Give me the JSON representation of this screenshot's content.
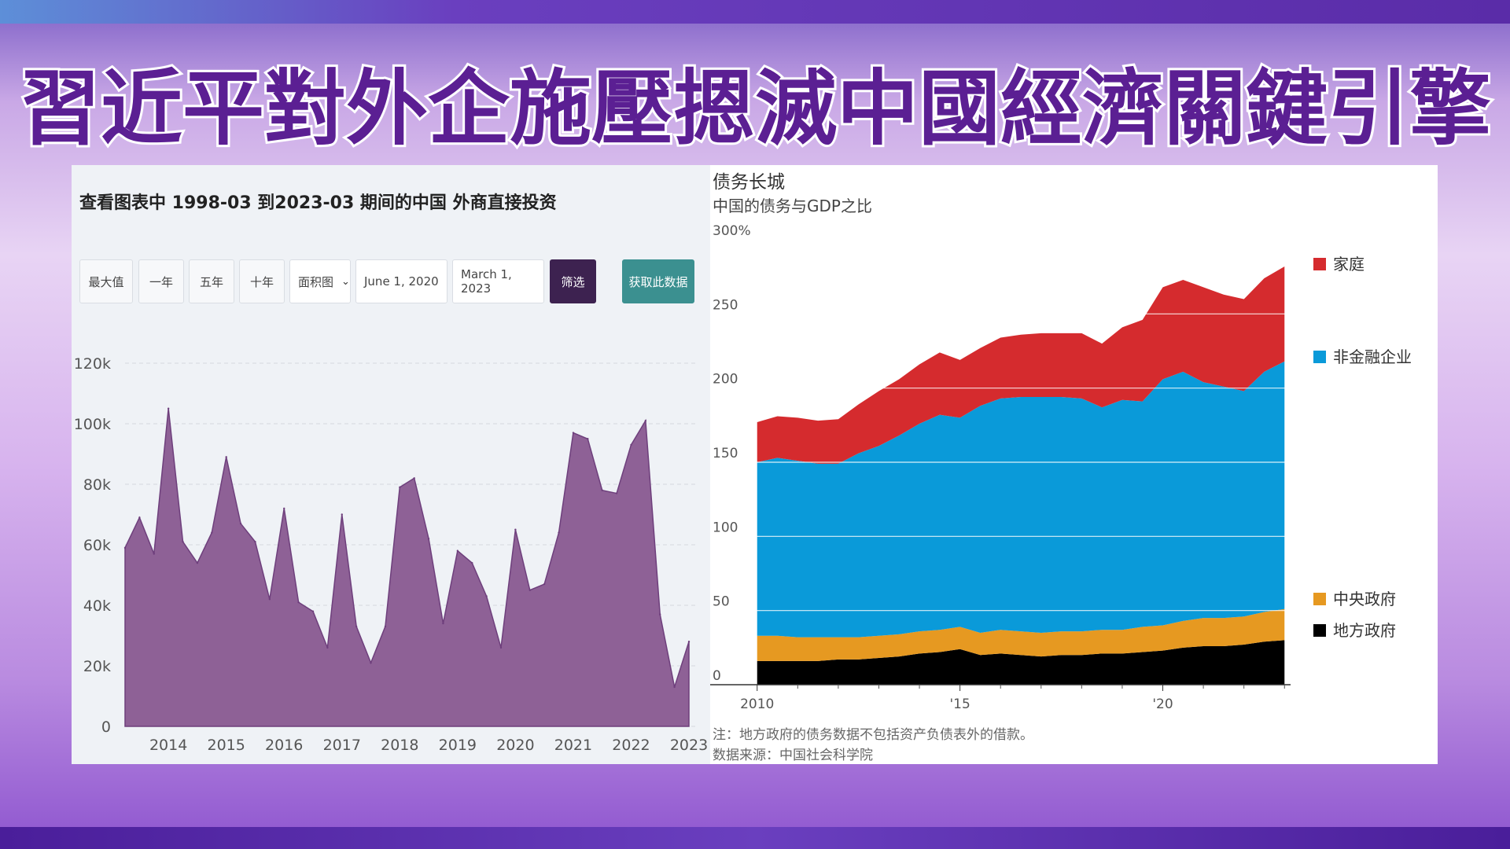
{
  "headline": "習近平對外企施壓摁滅中國經濟關鍵引擎",
  "left_panel": {
    "title": "查看图表中 1998-03 到2023-03 期间的中国 外商直接投资",
    "buttons": {
      "max": "最大值",
      "one_year": "一年",
      "five_year": "五年",
      "ten_year": "十年",
      "chart_type": "面积图",
      "start_date": "June 1, 2020",
      "end_date": "March 1, 2023",
      "filter": "筛选",
      "get_data": "获取此数据"
    }
  },
  "right_panel": {
    "title": "债务长城",
    "subtitle": "中国的债务与GDP之比",
    "note": "注：地方政府的债务数据不包括资产负债表外的借款。",
    "source": "数据来源：中国社会科学院"
  },
  "colors": {
    "fdi_fill": "#8e6196",
    "fdi_line": "#6e3f7c",
    "household": "#d52b2e",
    "nonfin": "#0a9ad9",
    "central": "#e69921",
    "local": "#000000"
  },
  "chart_data": [
    {
      "type": "area",
      "title": "",
      "x_ticks": [
        "2014",
        "2015",
        "2016",
        "2017",
        "2018",
        "2019",
        "2020",
        "2021",
        "2022",
        "2023"
      ],
      "y_ticks": [
        "0",
        "20k",
        "40k",
        "60k",
        "80k",
        "100k",
        "120k"
      ],
      "ylim": [
        0,
        120000
      ],
      "grid": "horizontal dashed",
      "x": [
        2013.25,
        2013.5,
        2013.75,
        2014.0,
        2014.25,
        2014.5,
        2014.75,
        2015.0,
        2015.25,
        2015.5,
        2015.75,
        2016.0,
        2016.25,
        2016.5,
        2016.75,
        2017.0,
        2017.25,
        2017.5,
        2017.75,
        2018.0,
        2018.25,
        2018.5,
        2018.75,
        2019.0,
        2019.25,
        2019.5,
        2019.75,
        2020.0,
        2020.25,
        2020.5,
        2020.75,
        2021.0,
        2021.25,
        2021.5,
        2021.75,
        2022.0,
        2022.25,
        2022.5,
        2022.75,
        2023.0
      ],
      "values": [
        59000,
        69000,
        57000,
        105000,
        61000,
        54000,
        64000,
        89000,
        67000,
        61000,
        42000,
        72000,
        41000,
        38000,
        26000,
        70000,
        33000,
        21000,
        33000,
        79000,
        82000,
        62000,
        34000,
        58000,
        54000,
        43000,
        26000,
        65000,
        45000,
        47000,
        64000,
        97000,
        95000,
        78000,
        77000,
        93000,
        101000,
        37000,
        13000,
        28000
      ]
    },
    {
      "type": "area",
      "stacked": true,
      "title": "债务长城",
      "subtitle": "中国的债务与GDP之比",
      "x_ticks": [
        "2010",
        "'15",
        "'20"
      ],
      "y_ticks": [
        "300%",
        "250",
        "200",
        "150",
        "100",
        "50",
        "0"
      ],
      "ylim": [
        0,
        300
      ],
      "legend_position": "right",
      "x": [
        2010.0,
        2010.5,
        2011.0,
        2011.5,
        2012.0,
        2012.5,
        2013.0,
        2013.5,
        2014.0,
        2014.5,
        2015.0,
        2015.5,
        2016.0,
        2016.5,
        2017.0,
        2017.5,
        2018.0,
        2018.5,
        2019.0,
        2019.5,
        2020.0,
        2020.5,
        2021.0,
        2021.5,
        2022.0,
        2022.5,
        2023.0
      ],
      "series": [
        {
          "name": "地方政府",
          "values": [
            16,
            16,
            16,
            16,
            17,
            17,
            18,
            19,
            21,
            22,
            24,
            20,
            21,
            20,
            19,
            20,
            20,
            21,
            21,
            22,
            23,
            25,
            26,
            26,
            27,
            29,
            30
          ]
        },
        {
          "name": "中央政府",
          "values": [
            17,
            17,
            16,
            16,
            15,
            15,
            15,
            15,
            15,
            15,
            15,
            15,
            16,
            16,
            16,
            16,
            16,
            16,
            16,
            17,
            17,
            18,
            19,
            19,
            19,
            20,
            21
          ]
        },
        {
          "name": "非金融企业",
          "values": [
            117,
            120,
            119,
            117,
            117,
            124,
            128,
            134,
            140,
            145,
            141,
            153,
            156,
            158,
            159,
            158,
            157,
            150,
            155,
            152,
            166,
            168,
            159,
            156,
            152,
            162,
            167
          ]
        },
        {
          "name": "家庭",
          "values": [
            27,
            28,
            29,
            29,
            30,
            33,
            37,
            38,
            40,
            42,
            39,
            39,
            41,
            42,
            43,
            43,
            44,
            43,
            49,
            55,
            62,
            62,
            64,
            62,
            62,
            63,
            64
          ]
        }
      ]
    }
  ]
}
